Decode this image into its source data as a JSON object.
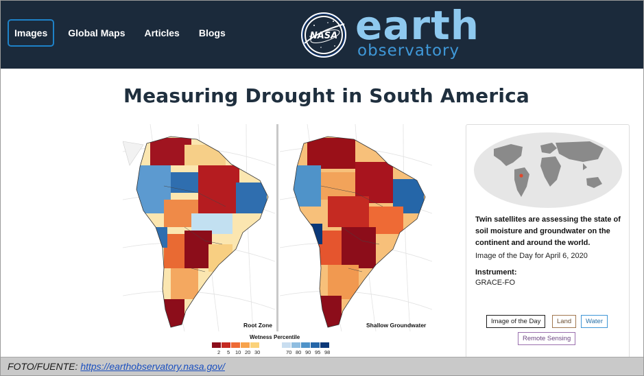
{
  "nav": {
    "items": [
      {
        "label": "Images",
        "active": true
      },
      {
        "label": "Global Maps",
        "active": false
      },
      {
        "label": "Articles",
        "active": false
      },
      {
        "label": "Blogs",
        "active": false
      }
    ]
  },
  "brand": {
    "nasa_label": "NASA",
    "name_top": "earth",
    "name_bottom": "observatory"
  },
  "article": {
    "title": "Measuring Drought in South America"
  },
  "maps": {
    "left_caption": "Root Zone",
    "right_caption": "Shallow Groundwater",
    "legend_title": "Wetness Percentile",
    "legend_dry_ticks": [
      "2",
      "5",
      "10",
      "20",
      "30"
    ],
    "legend_wet_ticks": [
      "70",
      "80",
      "90",
      "95",
      "98"
    ],
    "dry_colors": [
      "#8c0d1a",
      "#c52a22",
      "#ee6a35",
      "#f7a24c",
      "#fbd27a"
    ],
    "wet_colors": [
      "#c9def0",
      "#8fbde0",
      "#4f93c9",
      "#2566a8",
      "#0b3878"
    ]
  },
  "card": {
    "description": "Twin satellites are assessing the state of soil moisture and groundwater on the continent and around the world.",
    "date": "Image of the Day for April 6, 2020",
    "instrument_label": "Instrument:",
    "instrument_value": "GRACE-FO",
    "tags": {
      "image_of_the_day": "Image of the Day",
      "land": "Land",
      "water": "Water",
      "remote_sensing": "Remote Sensing"
    }
  },
  "credit": {
    "prefix": "FOTO/FUENTE: ",
    "link_text": "https://earthobservatory.nasa.gov/"
  },
  "colors": {
    "header_bg": "#1b2a3b",
    "nav_active_border": "#1e82c8",
    "brand_light": "#8ec9ef",
    "brand_dark": "#3f98d8",
    "title_color": "#1f2f3e",
    "globe_marker": "#e0472a"
  }
}
